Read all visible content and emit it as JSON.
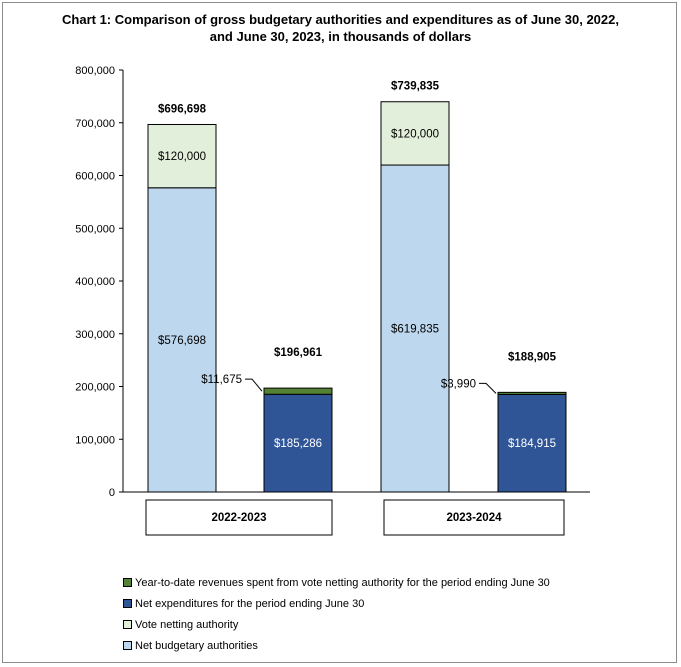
{
  "chart_data": {
    "type": "bar",
    "stacked": true,
    "title_line1": "Chart 1: Comparison of gross budgetary authorities and expenditures as of June 30, 2022,",
    "title_line2": "and June 30, 2023, in thousands of dollars",
    "ylim": [
      0,
      800000
    ],
    "yticks": [
      "0",
      "100,000",
      "200,000",
      "300,000",
      "400,000",
      "500,000",
      "600,000",
      "700,000",
      "800,000"
    ],
    "grid": false,
    "legend_position": "bottom",
    "categories": [
      "2022-2023",
      "2023-2024"
    ],
    "bars": [
      {
        "group": "2022-2023",
        "kind": "authorities",
        "total": 696698,
        "total_label": "$696,698",
        "segments": [
          {
            "series": "Net budgetary authorities",
            "value": 576698,
            "label": "$576,698"
          },
          {
            "series": "Vote netting authority",
            "value": 120000,
            "label": "$120,000"
          }
        ]
      },
      {
        "group": "2022-2023",
        "kind": "expenditures",
        "total": 196961,
        "total_label": "$196,961",
        "segments": [
          {
            "series": "Net expenditures for the period ending June 30",
            "value": 185286,
            "label": "$185,286"
          },
          {
            "series": "Year-to-date revenues spent from vote netting authority for the period ending June 30",
            "value": 11675,
            "label": "$11,675"
          }
        ]
      },
      {
        "group": "2023-2024",
        "kind": "authorities",
        "total": 739835,
        "total_label": "$739,835",
        "segments": [
          {
            "series": "Net budgetary authorities",
            "value": 619835,
            "label": "$619,835"
          },
          {
            "series": "Vote netting authority",
            "value": 120000,
            "label": "$120,000"
          }
        ]
      },
      {
        "group": "2023-2024",
        "kind": "expenditures",
        "total": 188905,
        "total_label": "$188,905",
        "segments": [
          {
            "series": "Net expenditures for the period ending June 30",
            "value": 184915,
            "label": "$184,915"
          },
          {
            "series": "Year-to-date revenues spent from vote netting authority for the period ending June 30",
            "value": 3990,
            "label": "$3,990"
          }
        ]
      }
    ],
    "legend": [
      {
        "name": "Year-to-date revenues spent from vote netting authority for the period ending June 30",
        "color": "#548235"
      },
      {
        "name": "Net expenditures for the period ending June 30",
        "color": "#2f5597"
      },
      {
        "name": "Vote netting authority",
        "color": "#e2efda"
      },
      {
        "name": "Net budgetary authorities",
        "color": "#bdd7ee"
      }
    ],
    "series_colors": {
      "Net budgetary authorities": "#bdd7ee",
      "Vote netting authority": "#e2efda",
      "Net expenditures for the period ending June 30": "#2f5597",
      "Year-to-date revenues spent from vote netting authority for the period ending June 30": "#548235"
    },
    "label_colors": {
      "Net expenditures for the period ending June 30": "#ffffff"
    }
  }
}
